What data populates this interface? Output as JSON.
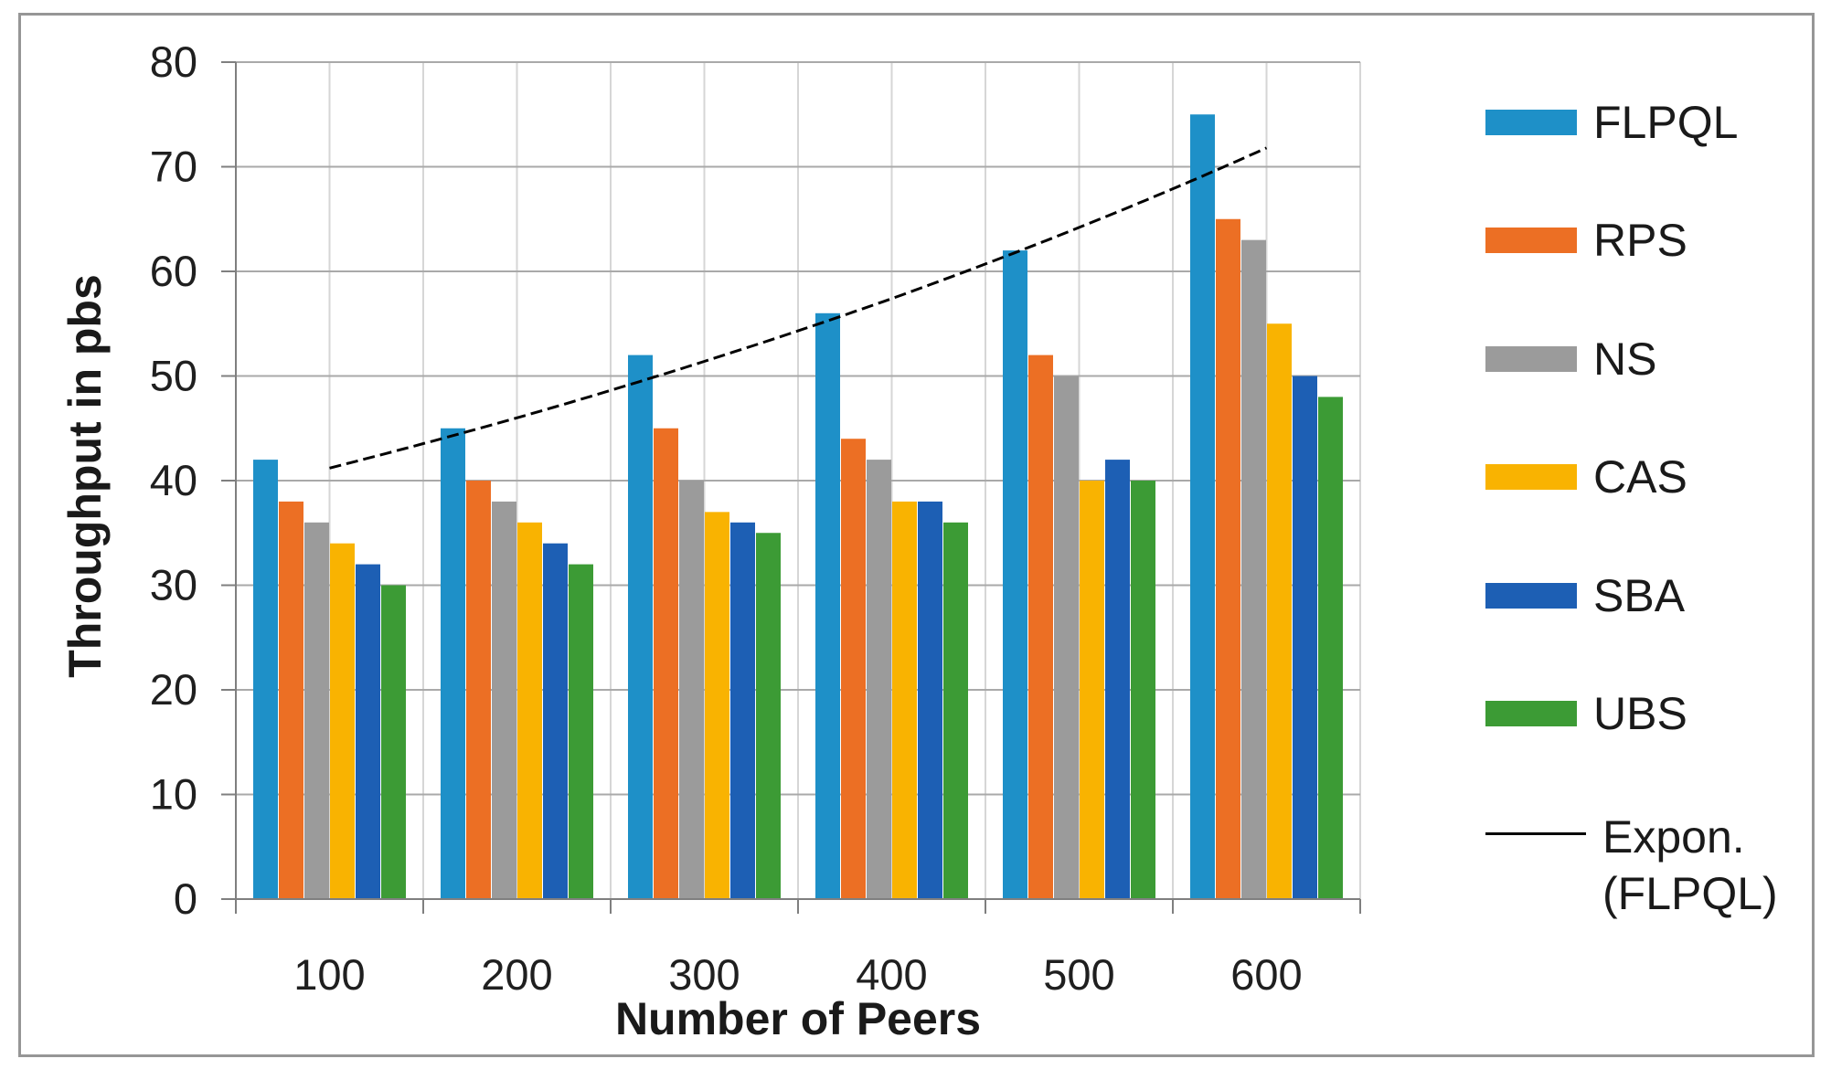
{
  "figure": {
    "background": "#FFFFFF",
    "border_color": "#969696"
  },
  "chart_data": {
    "type": "bar",
    "title": "",
    "xlabel": "Number of Peers",
    "ylabel": "Throughput in pbs",
    "categories": [
      "100",
      "200",
      "300",
      "400",
      "500",
      "600"
    ],
    "y_ticks": [
      0,
      10,
      20,
      30,
      40,
      50,
      60,
      70,
      80
    ],
    "ylim": [
      0,
      80
    ],
    "grid": {
      "horizontal_major": true,
      "vertical_half_category": true
    },
    "legend_position": "right",
    "series": [
      {
        "name": "FLPQL",
        "color": "#1E90C8",
        "values": [
          42,
          45,
          52,
          56,
          62,
          75
        ]
      },
      {
        "name": "RPS",
        "color": "#EC6F24",
        "values": [
          38,
          40,
          45,
          44,
          52,
          65
        ]
      },
      {
        "name": "NS",
        "color": "#9B9B9B",
        "values": [
          36,
          38,
          40,
          42,
          50,
          63
        ]
      },
      {
        "name": "CAS",
        "color": "#F9B301",
        "values": [
          34,
          36,
          37,
          38,
          40,
          55
        ]
      },
      {
        "name": "SBA",
        "color": "#1D5FB4",
        "values": [
          32,
          34,
          36,
          38,
          42,
          50
        ]
      },
      {
        "name": "UBS",
        "color": "#3C9B35",
        "values": [
          30,
          32,
          35,
          36,
          40,
          48
        ]
      }
    ],
    "trendline": {
      "name": "Expon. (FLPQL)",
      "label_line1": "Expon.",
      "label_line2": "(FLPQL)",
      "color": "#000000",
      "style": "dashed",
      "values_at_categories": [
        41.2,
        46.0,
        51.4,
        57.4,
        64.2,
        71.8
      ]
    }
  }
}
